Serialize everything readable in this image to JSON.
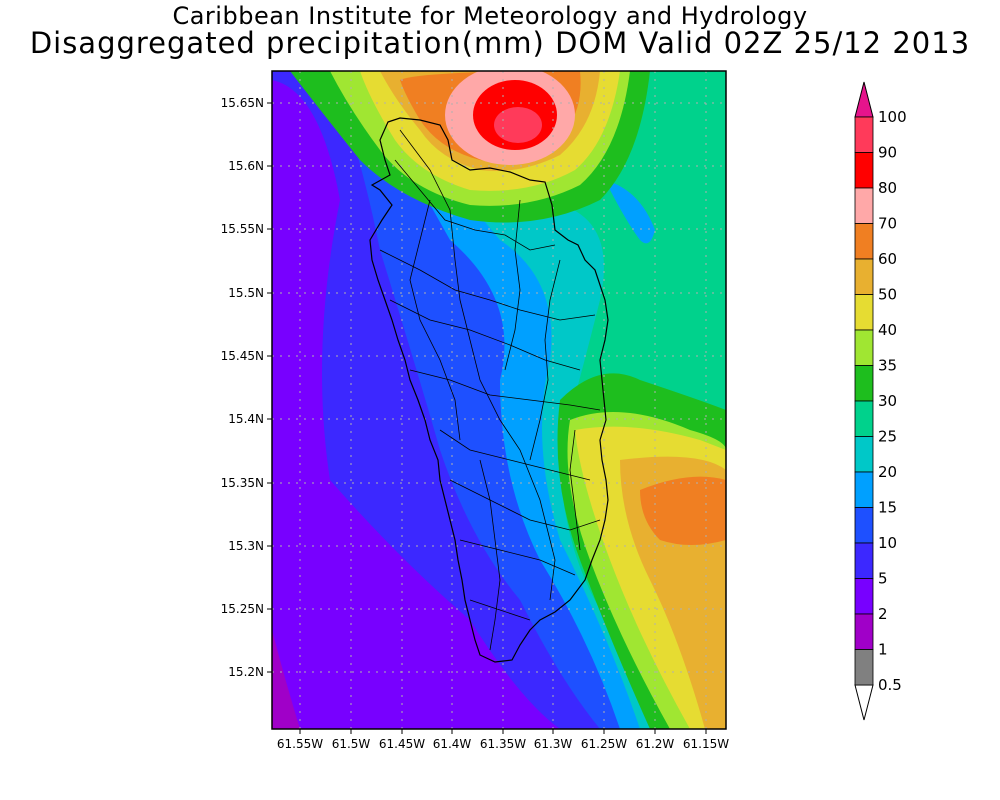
{
  "title": {
    "line1": "Caribbean Institute for Meteorology and Hydrology",
    "line2": "Disaggregated precipitation(mm) DOM Valid 02Z 25/12 2013"
  },
  "map": {
    "lat_labels": [
      "15.65N",
      "15.6N",
      "15.55N",
      "15.5N",
      "15.45N",
      "15.4N",
      "15.35N",
      "15.3N",
      "15.25N",
      "15.2N"
    ],
    "lon_labels": [
      "61.55W",
      "61.5W",
      "61.45W",
      "61.4W",
      "61.35W",
      "61.3W",
      "61.25W",
      "61.2W",
      "61.15W"
    ]
  },
  "legend": {
    "levels": [
      "100",
      "90",
      "80",
      "70",
      "60",
      "50",
      "40",
      "35",
      "30",
      "25",
      "20",
      "15",
      "10",
      "5",
      "2",
      "1",
      "0.5"
    ],
    "colors": [
      "#ff3a5a",
      "#ff0000",
      "#ffa8a8",
      "#f07f22",
      "#e8b030",
      "#e6dc32",
      "#a0e632",
      "#1ebe1e",
      "#00d28c",
      "#00c8c8",
      "#00a0ff",
      "#1e50ff",
      "#3c28ff",
      "#7800ff",
      "#a000c8",
      "#808080",
      "#ffffff"
    ],
    "top_arrow_color": "#e6148c"
  }
}
